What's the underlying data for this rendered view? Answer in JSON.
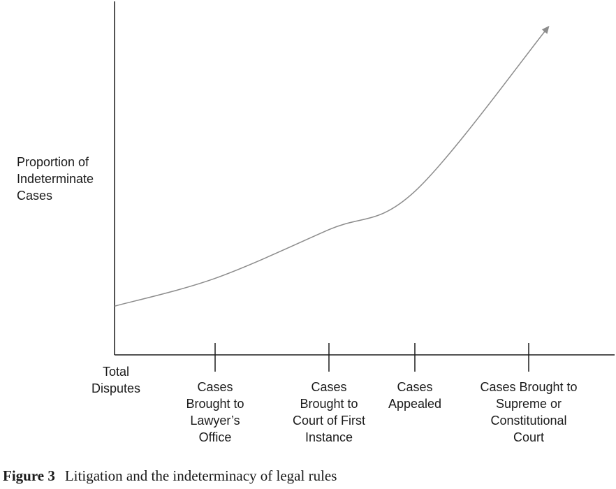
{
  "chart_data": {
    "type": "line",
    "ylabel": [
      "Proportion of",
      "Indeterminate",
      "Cases"
    ],
    "categories": [
      [
        "Total",
        "Disputes"
      ],
      [
        "Cases",
        "Brought to",
        "Lawyer’s",
        "Office"
      ],
      [
        "Cases",
        "Brought to",
        "Court of First",
        "Instance"
      ],
      [
        "Cases",
        "Appealed"
      ],
      [
        "Cases Brought to",
        "Supreme or",
        "Constitutional",
        "Court"
      ]
    ],
    "series": [
      {
        "values": [
          0.14,
          0.22,
          0.36,
          0.47,
          0.92
        ],
        "color": "#8c8c8c",
        "arrow_end": true
      }
    ],
    "ylim": [
      0,
      1
    ],
    "grid": false,
    "legend": "none"
  },
  "caption": {
    "number": "Figure 3",
    "text": "Litigation and the indeterminacy of legal rules"
  }
}
